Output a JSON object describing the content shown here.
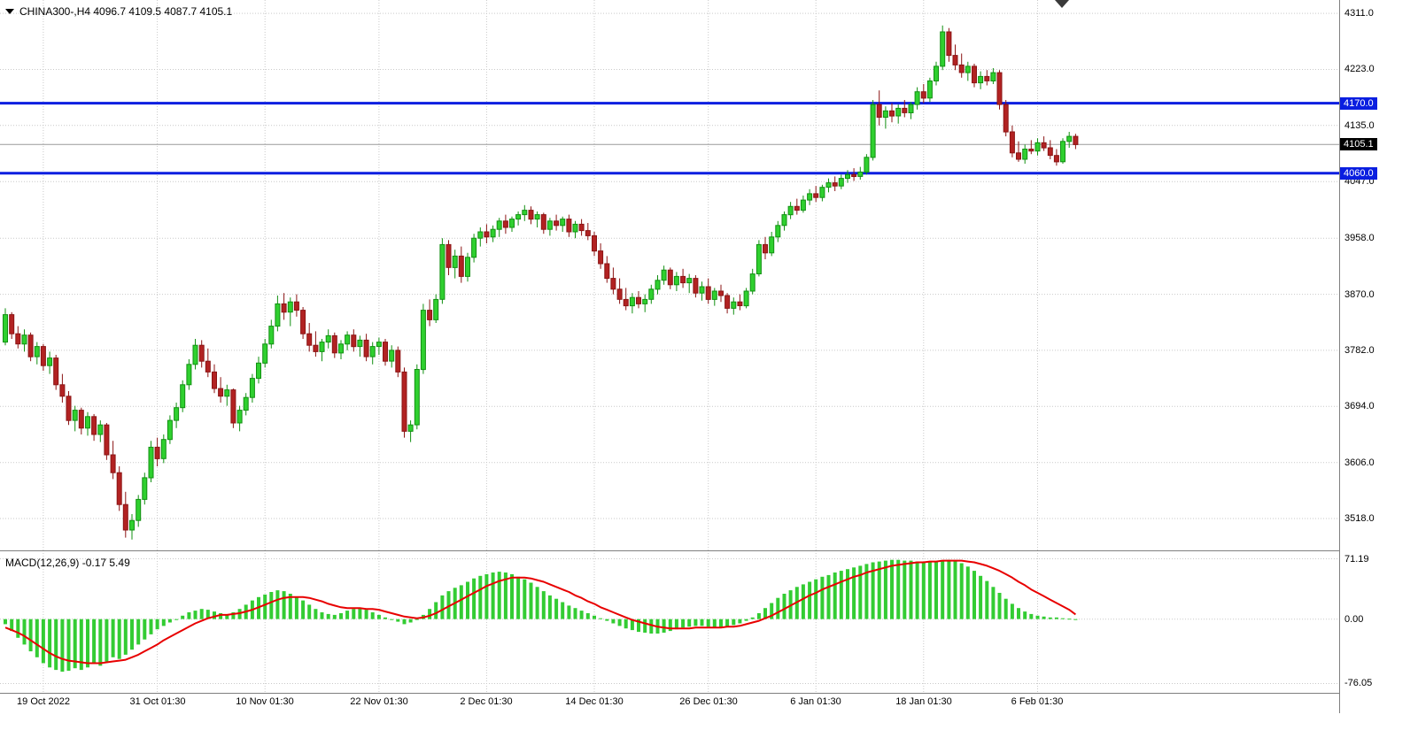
{
  "header": {
    "symbol_label": "CHINA300-,H4  4096.7 4109.5 4087.7 4105.1",
    "macd_label": "MACD(12,26,9) -0.17 5.49"
  },
  "colors": {
    "bull": "#2FD02F",
    "bull_border": "#129012",
    "bear": "#B22222",
    "bear_border": "#8B1414",
    "hline": "#0A1EE0",
    "bid_line": "#9a9a9a",
    "grid": "#c9c9c9",
    "signal": "#e80000",
    "histogram": "#33cc33",
    "badge_blue_bg": "#0A1EE0",
    "badge_black_bg": "#000000"
  },
  "chart_data": {
    "type": "candlestick",
    "title": "CHINA300-,H4",
    "symbol": "CHINA300-",
    "timeframe": "H4",
    "ohlc": {
      "open": 4096.7,
      "high": 4109.5,
      "low": 4087.7,
      "close": 4105.1
    },
    "price_range": {
      "min": 3468,
      "max": 4332
    },
    "price_axis": [
      {
        "text": "4311.0",
        "value": 4311.0
      },
      {
        "text": "4223.0",
        "value": 4223.0
      },
      {
        "text": "4135.0",
        "value": 4135.0
      },
      {
        "text": "4047.0",
        "value": 4047.0
      },
      {
        "text": "3958.0",
        "value": 3958.0
      },
      {
        "text": "3870.0",
        "value": 3870.0
      },
      {
        "text": "3782.0",
        "value": 3782.0
      },
      {
        "text": "3694.0",
        "value": 3694.0
      },
      {
        "text": "3606.0",
        "value": 3606.0
      },
      {
        "text": "3518.0",
        "value": 3518.0
      }
    ],
    "horizontal_lines": [
      {
        "value": 4170.0,
        "label": "4170.0"
      },
      {
        "value": 4060.0,
        "label": "4060.0"
      }
    ],
    "bid": {
      "value": 4105.1,
      "label": "4105.1"
    },
    "time_labels": [
      {
        "text": "19 Oct 2022",
        "index": 6
      },
      {
        "text": "31 Oct 01:30",
        "index": 24
      },
      {
        "text": "10 Nov 01:30",
        "index": 41
      },
      {
        "text": "22 Nov 01:30",
        "index": 59
      },
      {
        "text": "2 Dec 01:30",
        "index": 76
      },
      {
        "text": "14 Dec 01:30",
        "index": 93
      },
      {
        "text": "26 Dec 01:30",
        "index": 111
      },
      {
        "text": "6 Jan 01:30",
        "index": 128
      },
      {
        "text": "18 Jan 01:30",
        "index": 145
      },
      {
        "text": "6 Feb 01:30",
        "index": 163
      }
    ],
    "candles": [
      [
        3795,
        3848,
        3790,
        3838
      ],
      [
        3838,
        3842,
        3800,
        3808
      ],
      [
        3808,
        3820,
        3785,
        3792
      ],
      [
        3792,
        3815,
        3780,
        3806
      ],
      [
        3806,
        3810,
        3765,
        3772
      ],
      [
        3772,
        3795,
        3760,
        3788
      ],
      [
        3788,
        3792,
        3750,
        3758
      ],
      [
        3758,
        3780,
        3745,
        3770
      ],
      [
        3770,
        3775,
        3720,
        3728
      ],
      [
        3728,
        3745,
        3700,
        3710
      ],
      [
        3710,
        3718,
        3665,
        3672
      ],
      [
        3672,
        3695,
        3655,
        3688
      ],
      [
        3688,
        3692,
        3650,
        3660
      ],
      [
        3660,
        3685,
        3648,
        3678
      ],
      [
        3678,
        3682,
        3640,
        3650
      ],
      [
        3650,
        3672,
        3638,
        3665
      ],
      [
        3665,
        3668,
        3610,
        3618
      ],
      [
        3618,
        3640,
        3580,
        3590
      ],
      [
        3590,
        3600,
        3530,
        3540
      ],
      [
        3540,
        3560,
        3488,
        3500
      ],
      [
        3500,
        3525,
        3485,
        3515
      ],
      [
        3515,
        3555,
        3505,
        3548
      ],
      [
        3548,
        3590,
        3540,
        3582
      ],
      [
        3582,
        3640,
        3575,
        3630
      ],
      [
        3630,
        3645,
        3600,
        3612
      ],
      [
        3612,
        3650,
        3605,
        3642
      ],
      [
        3642,
        3680,
        3635,
        3672
      ],
      [
        3672,
        3700,
        3660,
        3692
      ],
      [
        3692,
        3735,
        3685,
        3728
      ],
      [
        3728,
        3768,
        3720,
        3760
      ],
      [
        3760,
        3800,
        3752,
        3790
      ],
      [
        3790,
        3798,
        3755,
        3765
      ],
      [
        3765,
        3785,
        3740,
        3748
      ],
      [
        3748,
        3760,
        3715,
        3722
      ],
      [
        3722,
        3740,
        3700,
        3710
      ],
      [
        3710,
        3728,
        3695,
        3720
      ],
      [
        3720,
        3722,
        3660,
        3668
      ],
      [
        3668,
        3695,
        3655,
        3688
      ],
      [
        3688,
        3715,
        3680,
        3708
      ],
      [
        3708,
        3745,
        3700,
        3738
      ],
      [
        3738,
        3772,
        3730,
        3762
      ],
      [
        3762,
        3800,
        3755,
        3792
      ],
      [
        3792,
        3830,
        3785,
        3820
      ],
      [
        3820,
        3868,
        3812,
        3855
      ],
      [
        3855,
        3872,
        3830,
        3842
      ],
      [
        3842,
        3865,
        3820,
        3858
      ],
      [
        3858,
        3870,
        3835,
        3845
      ],
      [
        3845,
        3850,
        3800,
        3808
      ],
      [
        3808,
        3825,
        3780,
        3790
      ],
      [
        3790,
        3812,
        3772,
        3780
      ],
      [
        3780,
        3800,
        3765,
        3795
      ],
      [
        3795,
        3815,
        3785,
        3805
      ],
      [
        3805,
        3810,
        3770,
        3778
      ],
      [
        3778,
        3798,
        3768,
        3792
      ],
      [
        3792,
        3812,
        3782,
        3806
      ],
      [
        3806,
        3815,
        3780,
        3788
      ],
      [
        3788,
        3805,
        3772,
        3798
      ],
      [
        3798,
        3808,
        3765,
        3772
      ],
      [
        3772,
        3795,
        3760,
        3788
      ],
      [
        3788,
        3802,
        3775,
        3795
      ],
      [
        3795,
        3800,
        3758,
        3765
      ],
      [
        3765,
        3790,
        3755,
        3782
      ],
      [
        3782,
        3788,
        3740,
        3748
      ],
      [
        3748,
        3755,
        3645,
        3655
      ],
      [
        3655,
        3672,
        3638,
        3665
      ],
      [
        3665,
        3760,
        3658,
        3752
      ],
      [
        3752,
        3855,
        3745,
        3845
      ],
      [
        3845,
        3862,
        3820,
        3830
      ],
      [
        3830,
        3870,
        3825,
        3862
      ],
      [
        3862,
        3958,
        3855,
        3948
      ],
      [
        3948,
        3955,
        3900,
        3912
      ],
      [
        3912,
        3940,
        3895,
        3930
      ],
      [
        3930,
        3945,
        3888,
        3898
      ],
      [
        3898,
        3935,
        3890,
        3928
      ],
      [
        3928,
        3965,
        3920,
        3958
      ],
      [
        3958,
        3975,
        3945,
        3968
      ],
      [
        3968,
        3980,
        3950,
        3960
      ],
      [
        3960,
        3978,
        3952,
        3972
      ],
      [
        3972,
        3990,
        3960,
        3985
      ],
      [
        3985,
        3995,
        3965,
        3975
      ],
      [
        3975,
        3992,
        3968,
        3988
      ],
      [
        3988,
        4000,
        3978,
        3995
      ],
      [
        3995,
        4010,
        3985,
        4002
      ],
      [
        4002,
        4008,
        3980,
        3988
      ],
      [
        3988,
        4000,
        3975,
        3995
      ],
      [
        3995,
        3998,
        3965,
        3972
      ],
      [
        3972,
        3990,
        3962,
        3985
      ],
      [
        3985,
        3995,
        3970,
        3978
      ],
      [
        3978,
        3992,
        3968,
        3988
      ],
      [
        3988,
        3995,
        3960,
        3968
      ],
      [
        3968,
        3985,
        3958,
        3980
      ],
      [
        3980,
        3988,
        3962,
        3970
      ],
      [
        3970,
        3982,
        3955,
        3962
      ],
      [
        3962,
        3968,
        3930,
        3938
      ],
      [
        3938,
        3950,
        3910,
        3918
      ],
      [
        3918,
        3930,
        3888,
        3895
      ],
      [
        3895,
        3912,
        3870,
        3878
      ],
      [
        3878,
        3895,
        3855,
        3862
      ],
      [
        3862,
        3880,
        3845,
        3852
      ],
      [
        3852,
        3872,
        3840,
        3865
      ],
      [
        3865,
        3875,
        3848,
        3855
      ],
      [
        3855,
        3870,
        3842,
        3862
      ],
      [
        3862,
        3885,
        3855,
        3878
      ],
      [
        3878,
        3900,
        3870,
        3892
      ],
      [
        3892,
        3915,
        3885,
        3908
      ],
      [
        3908,
        3912,
        3878,
        3885
      ],
      [
        3885,
        3905,
        3875,
        3898
      ],
      [
        3898,
        3910,
        3880,
        3888
      ],
      [
        3888,
        3902,
        3872,
        3895
      ],
      [
        3895,
        3900,
        3865,
        3872
      ],
      [
        3872,
        3890,
        3860,
        3882
      ],
      [
        3882,
        3895,
        3855,
        3862
      ],
      [
        3862,
        3880,
        3852,
        3875
      ],
      [
        3875,
        3885,
        3858,
        3868
      ],
      [
        3868,
        3872,
        3840,
        3848
      ],
      [
        3848,
        3865,
        3838,
        3858
      ],
      [
        3858,
        3870,
        3845,
        3852
      ],
      [
        3852,
        3880,
        3848,
        3875
      ],
      [
        3875,
        3910,
        3870,
        3902
      ],
      [
        3902,
        3955,
        3898,
        3948
      ],
      [
        3948,
        3960,
        3925,
        3935
      ],
      [
        3935,
        3968,
        3930,
        3960
      ],
      [
        3960,
        3985,
        3952,
        3978
      ],
      [
        3978,
        4000,
        3970,
        3995
      ],
      [
        3995,
        4015,
        3988,
        4008
      ],
      [
        4008,
        4020,
        3995,
        4002
      ],
      [
        4002,
        4025,
        3998,
        4018
      ],
      [
        4018,
        4035,
        4010,
        4028
      ],
      [
        4028,
        4040,
        4015,
        4022
      ],
      [
        4022,
        4042,
        4016,
        4038
      ],
      [
        4038,
        4052,
        4030,
        4045
      ],
      [
        4045,
        4055,
        4032,
        4040
      ],
      [
        4040,
        4058,
        4035,
        4052
      ],
      [
        4052,
        4065,
        4045,
        4058
      ],
      [
        4058,
        4068,
        4048,
        4055
      ],
      [
        4055,
        4070,
        4050,
        4062
      ],
      [
        4062,
        4090,
        4058,
        4085
      ],
      [
        4085,
        4175,
        4080,
        4168
      ],
      [
        4168,
        4190,
        4135,
        4148
      ],
      [
        4148,
        4165,
        4130,
        4158
      ],
      [
        4158,
        4170,
        4140,
        4150
      ],
      [
        4150,
        4168,
        4138,
        4162
      ],
      [
        4162,
        4175,
        4148,
        4155
      ],
      [
        4155,
        4172,
        4145,
        4168
      ],
      [
        4168,
        4195,
        4160,
        4188
      ],
      [
        4188,
        4200,
        4170,
        4178
      ],
      [
        4178,
        4210,
        4172,
        4205
      ],
      [
        4205,
        4235,
        4198,
        4228
      ],
      [
        4228,
        4292,
        4222,
        4282
      ],
      [
        4282,
        4288,
        4235,
        4245
      ],
      [
        4245,
        4262,
        4222,
        4230
      ],
      [
        4230,
        4248,
        4210,
        4218
      ],
      [
        4218,
        4235,
        4205,
        4228
      ],
      [
        4228,
        4232,
        4195,
        4202
      ],
      [
        4202,
        4220,
        4192,
        4212
      ],
      [
        4212,
        4222,
        4198,
        4205
      ],
      [
        4205,
        4225,
        4200,
        4218
      ],
      [
        4218,
        4222,
        4160,
        4168
      ],
      [
        4168,
        4175,
        4118,
        4125
      ],
      [
        4125,
        4135,
        4085,
        4092
      ],
      [
        4092,
        4110,
        4078,
        4082
      ],
      [
        4082,
        4105,
        4075,
        4098
      ],
      [
        4098,
        4112,
        4090,
        4095
      ],
      [
        4095,
        4115,
        4088,
        4108
      ],
      [
        4108,
        4118,
        4095,
        4100
      ],
      [
        4100,
        4112,
        4082,
        4088
      ],
      [
        4088,
        4098,
        4072,
        4078
      ],
      [
        4078,
        4115,
        4075,
        4110
      ],
      [
        4110,
        4125,
        4100,
        4118
      ],
      [
        4118,
        4122,
        4098,
        4105.1
      ]
    ],
    "macd": {
      "label": "MACD(12,26,9)",
      "macd_value": -0.17,
      "signal_value": 5.49,
      "range": {
        "min": -86,
        "max": 78
      },
      "axis_labels": [
        {
          "text": "71.19",
          "value": 71.19
        },
        {
          "text": "0.00",
          "value": 0
        },
        {
          "text": "-76.05",
          "value": -76.05
        }
      ],
      "histogram": [
        -6,
        -14,
        -22,
        -30,
        -38,
        -45,
        -52,
        -57,
        -60,
        -62,
        -61,
        -58,
        -60,
        -57,
        -52,
        -55,
        -50,
        -45,
        -47,
        -42,
        -36,
        -30,
        -24,
        -18,
        -12,
        -8,
        -4,
        -1,
        4,
        8,
        10,
        12,
        11,
        9,
        7,
        5,
        8,
        12,
        17,
        22,
        26,
        29,
        32,
        34,
        33,
        30,
        26,
        22,
        17,
        12,
        8,
        6,
        5,
        7,
        10,
        12,
        13,
        11,
        8,
        5,
        2,
        -1,
        -3,
        -6,
        -4,
        -1,
        5,
        12,
        20,
        28,
        33,
        37,
        40,
        44,
        48,
        51,
        53,
        55,
        56,
        55,
        53,
        50,
        47,
        43,
        38,
        33,
        28,
        24,
        20,
        16,
        13,
        10,
        7,
        4,
        1,
        -2,
        -5,
        -8,
        -11,
        -13,
        -15,
        -16,
        -17,
        -17,
        -16,
        -14,
        -12,
        -10,
        -9,
        -8,
        -8,
        -9,
        -10,
        -10,
        -9,
        -7,
        -5,
        -2,
        2,
        7,
        13,
        19,
        25,
        30,
        34,
        38,
        41,
        44,
        47,
        50,
        52,
        55,
        57,
        59,
        61,
        63,
        65,
        67,
        68,
        69,
        70,
        70,
        69,
        69,
        68,
        68,
        67,
        68,
        69,
        70,
        69,
        66,
        62,
        57,
        51,
        45,
        38,
        31,
        24,
        18,
        13,
        9,
        6,
        4,
        3,
        2,
        2,
        1,
        0.5,
        -0.17
      ],
      "signal": [
        -10,
        -13,
        -16,
        -20,
        -25,
        -30,
        -35,
        -40,
        -44,
        -47,
        -49,
        -50,
        -51,
        -52,
        -52,
        -52,
        -51,
        -50,
        -49,
        -48,
        -45,
        -42,
        -38,
        -34,
        -30,
        -25,
        -21,
        -17,
        -13,
        -9,
        -5,
        -2,
        1,
        3,
        5,
        5,
        6,
        7,
        9,
        11,
        14,
        17,
        20,
        23,
        25,
        26,
        26,
        26,
        25,
        23,
        21,
        18,
        16,
        14,
        13,
        13,
        13,
        12,
        12,
        11,
        9,
        7,
        5,
        3,
        2,
        1,
        2,
        4,
        7,
        11,
        15,
        19,
        23,
        27,
        31,
        35,
        39,
        42,
        45,
        47,
        49,
        49,
        49,
        48,
        46,
        44,
        41,
        38,
        35,
        32,
        28,
        25,
        21,
        18,
        14,
        11,
        8,
        5,
        2,
        -1,
        -3,
        -5,
        -7,
        -9,
        -10,
        -11,
        -11,
        -11,
        -11,
        -10,
        -10,
        -10,
        -10,
        -10,
        -9,
        -9,
        -8,
        -6,
        -4,
        -2,
        1,
        4,
        8,
        12,
        16,
        20,
        24,
        28,
        31,
        35,
        38,
        41,
        44,
        47,
        50,
        52,
        55,
        57,
        59,
        61,
        63,
        64,
        65,
        66,
        67,
        67,
        68,
        68,
        69,
        69,
        69,
        69,
        68,
        67,
        65,
        63,
        60,
        57,
        53,
        49,
        44,
        40,
        35,
        31,
        27,
        23,
        19,
        15,
        11,
        5.49
      ]
    }
  }
}
